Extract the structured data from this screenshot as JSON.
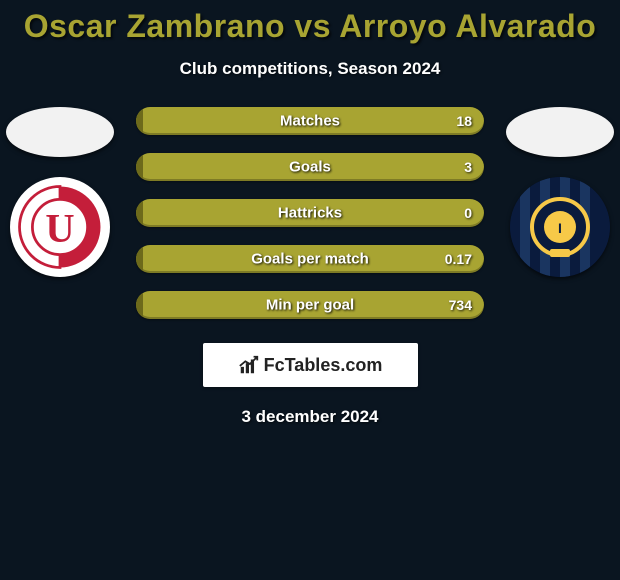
{
  "colors": {
    "background": "#0a1520",
    "title": "#a8a432",
    "bar_bg": "#a8a432",
    "bar_fill_left": "#6d6a1b",
    "text": "#ffffff",
    "brand_text": "#222222"
  },
  "header": {
    "player1": "Oscar Zambrano",
    "player2": "Arroyo Alvarado",
    "title": "Oscar Zambrano vs Arroyo Alvarado",
    "subtitle": "Club competitions, Season 2024"
  },
  "stats": [
    {
      "label": "Matches",
      "left_value": null,
      "right_value": "18",
      "left_fill_pct": 2
    },
    {
      "label": "Goals",
      "left_value": null,
      "right_value": "3",
      "left_fill_pct": 2
    },
    {
      "label": "Hattricks",
      "left_value": null,
      "right_value": "0",
      "left_fill_pct": 2
    },
    {
      "label": "Goals per match",
      "left_value": null,
      "right_value": "0.17",
      "left_fill_pct": 2
    },
    {
      "label": "Min per goal",
      "left_value": null,
      "right_value": "734",
      "left_fill_pct": 2
    }
  ],
  "brand": {
    "text": "FcTables.com"
  },
  "date": "3 december 2024",
  "clubs": {
    "left": {
      "name": "LDU Quito",
      "letter": "U",
      "primary": "#c41e3a",
      "secondary": "#ffffff"
    },
    "right": {
      "name": "Independiente del Valle",
      "primary": "#0a1b3d",
      "secondary": "#f7c948",
      "accent": "#ffffff"
    }
  },
  "typography": {
    "title_fontsize": 32,
    "subtitle_fontsize": 17,
    "bar_label_fontsize": 15,
    "bar_value_fontsize": 14,
    "date_fontsize": 17
  }
}
